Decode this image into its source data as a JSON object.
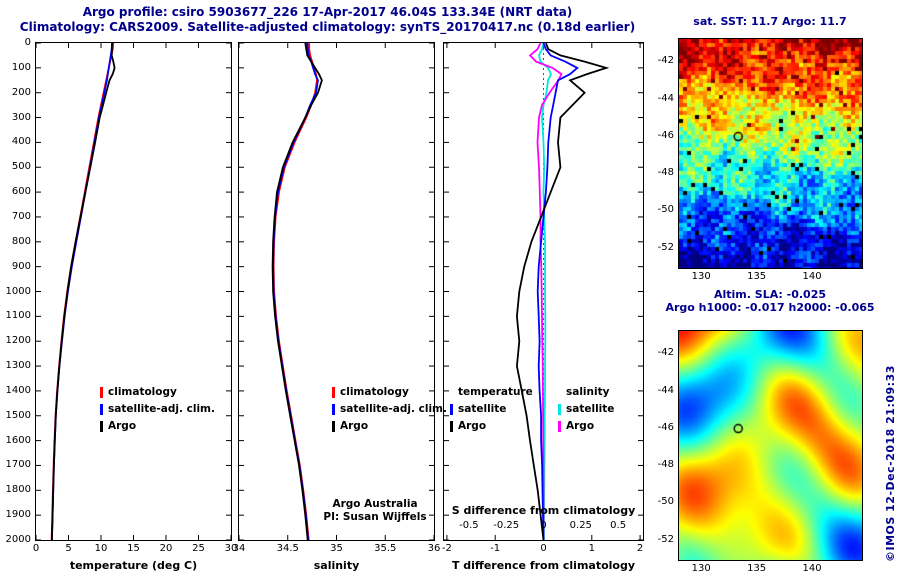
{
  "header": {
    "title_line1": "Argo profile: csiro 5903677_226 17-Apr-2017 46.04S 133.34E (NRT data)",
    "title_line2": "Climatology: CARS2009. Satellite-adjusted climatology: synTS_20170417.nc (0.18d earlier)",
    "title_color": "#00008c"
  },
  "footer": {
    "line1": "Argo Australia",
    "line2": "PI: Susan Wijffels"
  },
  "copyright": "©IMOS 12-Dec-2018 21:09:33",
  "chart_data": [
    {
      "id": "temperature_profile",
      "type": "line",
      "xlabel": "temperature (deg C)",
      "xlim": [
        0,
        30
      ],
      "xticks": [
        0,
        5,
        10,
        15,
        20,
        25,
        30
      ],
      "xtick_labels": [
        "0",
        "5",
        "10",
        "15",
        "20",
        "25",
        "30"
      ],
      "ylim": [
        0,
        2000
      ],
      "yticks": [
        0,
        100,
        200,
        300,
        400,
        500,
        600,
        700,
        800,
        900,
        1000,
        1100,
        1200,
        1300,
        1400,
        1500,
        1600,
        1700,
        1800,
        1900,
        2000
      ],
      "depths": [
        0,
        25,
        50,
        75,
        100,
        125,
        150,
        200,
        250,
        300,
        400,
        500,
        600,
        700,
        800,
        900,
        1000,
        1100,
        1200,
        1300,
        1400,
        1500,
        1600,
        1700,
        1800,
        1900,
        2000
      ],
      "series": [
        {
          "name": "climatology",
          "color": "#ff0000",
          "values": [
            11.9,
            11.8,
            11.6,
            11.4,
            11.2,
            11.0,
            10.8,
            10.4,
            10.0,
            9.6,
            8.9,
            8.2,
            7.5,
            6.8,
            6.1,
            5.4,
            4.8,
            4.3,
            3.9,
            3.55,
            3.25,
            3.0,
            2.85,
            2.7,
            2.6,
            2.5,
            2.4
          ]
        },
        {
          "name": "satellite-adj. clim.",
          "color": "#0000ff",
          "values": [
            11.7,
            11.65,
            11.5,
            11.35,
            11.2,
            11.05,
            10.9,
            10.5,
            10.1,
            9.7,
            9.0,
            8.3,
            7.6,
            6.9,
            6.2,
            5.5,
            4.9,
            4.4,
            4.0,
            3.6,
            3.3,
            3.05,
            2.9,
            2.75,
            2.65,
            2.55,
            2.45
          ]
        },
        {
          "name": "Argo",
          "color": "#000000",
          "values": [
            11.7,
            11.68,
            11.65,
            11.9,
            12.1,
            11.8,
            11.3,
            10.8,
            10.3,
            9.8,
            9.1,
            8.35,
            7.6,
            6.85,
            6.1,
            5.4,
            4.85,
            4.35,
            3.95,
            3.6,
            3.3,
            3.05,
            2.9,
            2.75,
            2.65,
            2.55,
            2.45
          ]
        }
      ]
    },
    {
      "id": "salinity_profile",
      "type": "line",
      "xlabel": "salinity",
      "xlim": [
        34,
        36
      ],
      "xticks": [
        34,
        34.5,
        35,
        35.5,
        36
      ],
      "xtick_labels": [
        "34",
        "34.5",
        "35",
        "35.5",
        "36"
      ],
      "ylim": [
        0,
        2000
      ],
      "yticks": [],
      "depths": [
        0,
        25,
        50,
        75,
        100,
        125,
        150,
        200,
        250,
        300,
        400,
        500,
        600,
        700,
        800,
        900,
        1000,
        1100,
        1200,
        1300,
        1400,
        1500,
        1600,
        1700,
        1800,
        1900,
        2000
      ],
      "series": [
        {
          "name": "climatology",
          "color": "#ff0000",
          "values": [
            34.72,
            34.72,
            34.73,
            34.75,
            34.77,
            34.79,
            34.8,
            34.78,
            34.74,
            34.69,
            34.57,
            34.47,
            34.41,
            34.375,
            34.36,
            34.355,
            34.36,
            34.38,
            34.41,
            34.45,
            34.49,
            34.535,
            34.58,
            34.625,
            34.66,
            34.69,
            34.715
          ]
        },
        {
          "name": "satellite-adj. clim.",
          "color": "#0000ff",
          "values": [
            34.7,
            34.705,
            34.715,
            34.74,
            34.76,
            34.78,
            34.81,
            34.79,
            34.73,
            34.68,
            34.56,
            34.46,
            34.4,
            34.37,
            34.355,
            34.35,
            34.355,
            34.375,
            34.405,
            34.445,
            34.485,
            34.53,
            34.575,
            34.62,
            34.655,
            34.685,
            34.71
          ]
        },
        {
          "name": "Argo",
          "color": "#000000",
          "values": [
            34.68,
            34.69,
            34.7,
            34.74,
            34.78,
            34.82,
            34.85,
            34.81,
            34.74,
            34.68,
            34.55,
            34.45,
            34.39,
            34.365,
            34.35,
            34.345,
            34.35,
            34.37,
            34.4,
            34.44,
            34.48,
            34.525,
            34.57,
            34.615,
            34.65,
            34.68,
            34.705
          ]
        }
      ]
    },
    {
      "id": "difference_profile",
      "type": "line",
      "xlabel": "T difference from climatology",
      "xlabel_top": "S difference from climatology",
      "xlim": [
        -2.06,
        2.06
      ],
      "xticks": [
        -2,
        -1,
        0,
        1,
        2
      ],
      "xtick_labels": [
        "-2",
        "-1",
        "0",
        "1",
        "2"
      ],
      "s_xlim": [
        -0.6667,
        0.6667
      ],
      "s_xticks": [
        -0.5,
        -0.25,
        0,
        0.25,
        0.5
      ],
      "s_xtick_labels": [
        "-0.5",
        "-0.25",
        "0",
        "0.25",
        "0.5"
      ],
      "ylim": [
        0,
        2000
      ],
      "yticks": [],
      "depths": [
        0,
        25,
        50,
        75,
        100,
        125,
        150,
        200,
        250,
        300,
        400,
        500,
        600,
        700,
        800,
        900,
        1000,
        1100,
        1200,
        1300,
        1400,
        1500,
        1600,
        1700,
        1800,
        1900,
        2000
      ],
      "legend": {
        "headers": [
          "temperature",
          "salinity"
        ],
        "cols": [
          [
            {
              "label": "satellite",
              "color": "#0000ff"
            },
            {
              "label": "Argo",
              "color": "#000000"
            }
          ],
          [
            {
              "label": "satellite",
              "color": "#00e5e5"
            },
            {
              "label": "Argo",
              "color": "#ff00ff"
            }
          ]
        ]
      },
      "series": [
        {
          "name": "S satellite",
          "axis": "S",
          "color": "#00e5e5",
          "values": [
            0.0,
            -0.01,
            -0.03,
            -0.02,
            0.03,
            0.05,
            0.03,
            0.02,
            0.0,
            -0.01,
            0.0,
            0.005,
            0.0,
            0.005,
            0.01,
            0.01,
            0.01,
            0.012,
            0.012,
            0.01,
            0.01,
            0.008,
            0.008,
            0.006,
            0.005,
            0.004,
            0.003
          ]
        },
        {
          "name": "S Argo",
          "axis": "S",
          "color": "#ff00ff",
          "values": [
            -0.02,
            -0.04,
            -0.09,
            -0.05,
            0.06,
            0.12,
            0.1,
            0.04,
            -0.01,
            -0.03,
            -0.04,
            -0.03,
            -0.025,
            -0.02,
            -0.02,
            -0.015,
            -0.012,
            -0.01,
            -0.008,
            -0.005,
            -0.004,
            -0.003,
            -0.002,
            -0.001,
            0.0,
            0.0,
            0.0
          ]
        },
        {
          "name": "T satellite",
          "axis": "T",
          "color": "#0000ff",
          "values": [
            0.0,
            0.05,
            0.15,
            0.45,
            0.7,
            0.55,
            0.3,
            0.25,
            0.2,
            0.15,
            0.1,
            0.08,
            0.05,
            0.0,
            -0.05,
            -0.1,
            -0.12,
            -0.1,
            -0.08,
            -0.1,
            -0.08,
            -0.05,
            -0.05,
            -0.03,
            -0.02,
            -0.01,
            0.0
          ]
        },
        {
          "name": "T Argo",
          "axis": "T",
          "color": "#000000",
          "values": [
            0.05,
            0.1,
            0.35,
            0.85,
            1.3,
            0.9,
            0.55,
            0.85,
            0.6,
            0.35,
            0.3,
            0.35,
            0.15,
            -0.05,
            -0.25,
            -0.4,
            -0.5,
            -0.55,
            -0.5,
            -0.55,
            -0.45,
            -0.35,
            -0.28,
            -0.2,
            -0.12,
            -0.06,
            0.0
          ]
        }
      ]
    },
    {
      "id": "sst_map",
      "type": "heatmap",
      "title": "sat. SST: 11.7 Argo: 11.7",
      "values": {
        "sat_sst": 11.7,
        "argo_sst": 11.7
      },
      "lon_range": [
        128.0,
        144.5
      ],
      "lat_range": [
        -40.8,
        -53.1
      ],
      "xticks": [
        130,
        135,
        140
      ],
      "yticks": [
        -42,
        -44,
        -46,
        -48,
        -50,
        -52
      ],
      "float_marker": {
        "lon": 133.34,
        "lat": -46.04
      }
    },
    {
      "id": "sla_map",
      "type": "heatmap",
      "title_line1": "Altim. SLA: -0.025",
      "title_line2": "Argo h1000: -0.017 h2000: -0.065",
      "values": {
        "altim_sla": -0.025,
        "argo_h1000": -0.017,
        "argo_h2000": -0.065
      },
      "lon_range": [
        128.0,
        144.5
      ],
      "lat_range": [
        -40.8,
        -53.1
      ],
      "xticks": [
        130,
        135,
        140
      ],
      "yticks": [
        -42,
        -44,
        -46,
        -48,
        -50,
        -52
      ],
      "float_marker": {
        "lon": 133.34,
        "lat": -46.04
      }
    }
  ]
}
